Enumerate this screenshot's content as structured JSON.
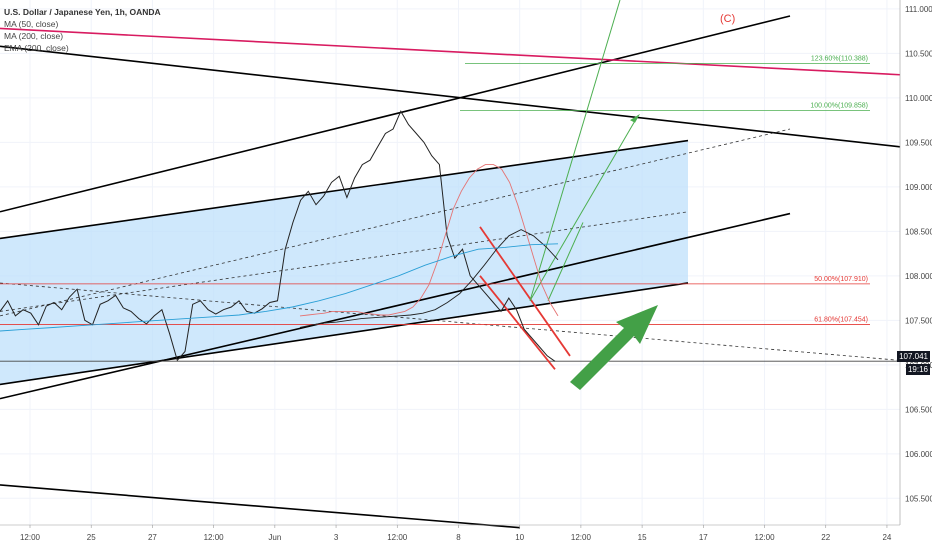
{
  "legend": {
    "symbol": "U.S. Dollar / Japanese Yen, 1h, OANDA",
    "ma50": "MA (50, close)",
    "ma200": "MA (200, close)",
    "ema200": "EMA (200, close)"
  },
  "wave_label": "(C)",
  "price_marker": {
    "price": "107.041",
    "countdown": "19:16"
  },
  "chart_data": {
    "type": "line",
    "title": "U.S. Dollar / Japanese Yen, 1h, OANDA",
    "xlabel": "",
    "ylabel": "",
    "x_ticks": [
      "12:00",
      "25",
      "27",
      "12:00",
      "Jun",
      "3",
      "12:00",
      "8",
      "10",
      "12:00",
      "15",
      "17",
      "12:00",
      "22",
      "24"
    ],
    "y_ticks": [
      105.5,
      106.0,
      106.5,
      107.0,
      107.5,
      108.0,
      108.5,
      109.0,
      109.5,
      110.0,
      110.5,
      111.0
    ],
    "ylim": [
      105.2,
      111.1
    ],
    "grid": true,
    "fib_levels": [
      {
        "label": "123.60%(110.388)",
        "value": 110.388,
        "color": "#4caf50"
      },
      {
        "label": "100.00%(109.858)",
        "value": 109.858,
        "color": "#4caf50"
      },
      {
        "label": "50.00%(107.910)",
        "value": 107.91,
        "color": "#e53935"
      },
      {
        "label": "61.80%(107.454)",
        "value": 107.454,
        "color": "#e53935"
      }
    ],
    "series": [
      {
        "name": "U.S. Dollar / Japanese Yen, 1h, OANDA",
        "color": "#222222",
        "values": [
          107.6,
          107.72,
          107.55,
          107.62,
          107.58,
          107.45,
          107.66,
          107.7,
          107.62,
          107.76,
          107.85,
          107.5,
          107.45,
          107.68,
          107.72,
          107.78,
          107.64,
          107.6,
          107.52,
          107.46,
          107.55,
          107.62,
          107.35,
          107.05,
          107.15,
          107.68,
          107.72,
          107.62,
          107.57,
          107.62,
          107.65,
          107.72,
          107.6,
          107.58,
          107.63,
          107.7,
          107.72,
          108.3,
          108.6,
          108.85,
          108.95,
          108.8,
          108.9,
          109.05,
          109.12,
          108.88,
          109.1,
          109.25,
          109.3,
          109.45,
          109.6,
          109.65,
          109.85,
          109.7,
          109.6,
          109.5,
          109.35,
          109.25,
          108.45,
          108.2,
          108.3,
          108.0,
          107.9,
          107.8,
          107.7,
          107.6,
          107.75,
          107.62,
          107.4,
          107.3,
          107.2,
          107.1,
          107.04
        ]
      },
      {
        "name": "MA (50, close)",
        "color": "#e57373",
        "values": [
          107.55,
          107.56,
          107.57,
          107.58,
          107.6,
          107.6,
          107.6,
          107.6,
          107.58,
          107.57,
          107.56,
          107.56,
          107.58,
          107.6,
          107.65,
          107.75,
          107.9,
          108.15,
          108.45,
          108.75,
          108.95,
          109.1,
          109.2,
          109.25,
          109.25,
          109.2,
          109.05,
          108.8,
          108.5,
          108.2,
          107.9,
          107.7,
          107.55
        ]
      },
      {
        "name": "MA (200, close)",
        "color": "#222222",
        "values": [
          107.42,
          107.45,
          107.47,
          107.48,
          107.5,
          107.52,
          107.53,
          107.54,
          107.55,
          107.56,
          107.58,
          107.62,
          107.7,
          107.8,
          107.95,
          108.12,
          108.3,
          108.45,
          108.52,
          108.45,
          108.33,
          108.18
        ]
      },
      {
        "name": "EMA (200, close)",
        "color": "#2a9fd6",
        "values": [
          107.38,
          107.4,
          107.42,
          107.44,
          107.46,
          107.48,
          107.5,
          107.52,
          107.54,
          107.56,
          107.6,
          107.65,
          107.72,
          107.8,
          107.9,
          108.0,
          108.12,
          108.22,
          108.3,
          108.32,
          108.35,
          108.36
        ]
      }
    ]
  },
  "colors": {
    "channel_fill": "#bbdefb",
    "trend_line": "#000000",
    "magenta_line": "#d81b60",
    "green_projection": "#4caf50",
    "red_wedge": "#e53935",
    "green_arrow": "#43a047",
    "wave_label": "#e53935"
  }
}
